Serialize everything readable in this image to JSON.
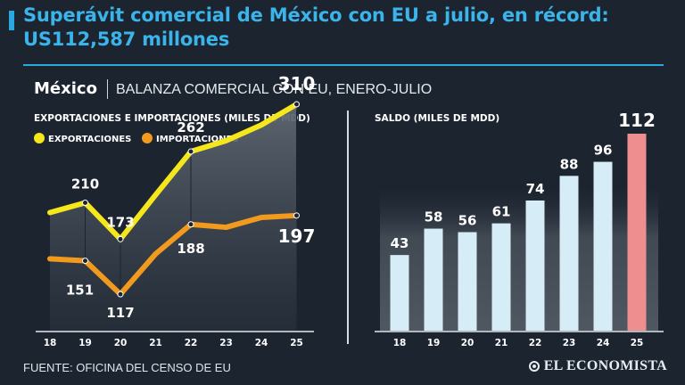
{
  "header": {
    "title": "Superávit comercial de México con EU a julio, en récord: US112,587 millones",
    "country": "México",
    "subtitle": "BALANZA COMERCIAL CON EU, ENERO-JULIO"
  },
  "footer": {
    "source": "FUENTE: OFICINA DEL CENSO DE EU",
    "brand": "EL ECONOMISTA"
  },
  "colors": {
    "accent": "#29a9e0",
    "exports": "#f5e71c",
    "imports": "#f29a1e",
    "bar": "#d6ecf6",
    "bar_highlight": "#ef8e8e"
  },
  "chart_data": [
    {
      "type": "line",
      "title": "EXPORTACIONES E IMPORTACIONES (MILES DE MDD)",
      "x": [
        "18",
        "19",
        "20",
        "21",
        "22",
        "23",
        "24",
        "25"
      ],
      "series": [
        {
          "name": "EXPORTACIONES",
          "values": [
            200,
            210,
            173,
            218,
            262,
            273,
            289,
            310
          ]
        },
        {
          "name": "IMPORTACIONES",
          "values": [
            153,
            151,
            117,
            158,
            188,
            185,
            195,
            197
          ]
        }
      ],
      "labeled": {
        "EXPORTACIONES": [
          {
            "x": "19",
            "value": "210"
          },
          {
            "x": "20",
            "value": "173"
          },
          {
            "x": "22",
            "value": "262"
          },
          {
            "x": "25",
            "value": "310"
          }
        ],
        "IMPORTACIONES": [
          {
            "x": "19",
            "value": "151"
          },
          {
            "x": "20",
            "value": "117"
          },
          {
            "x": "22",
            "value": "188"
          },
          {
            "x": "25",
            "value": "197"
          }
        ]
      },
      "legend": "top-left",
      "ylim": [
        80,
        320
      ]
    },
    {
      "type": "bar",
      "title": "SALDO (MILES DE MDD)",
      "categories": [
        "18",
        "19",
        "20",
        "21",
        "22",
        "23",
        "24",
        "25"
      ],
      "values": [
        43,
        58,
        56,
        61,
        74,
        88,
        96,
        112
      ],
      "labels": [
        "43",
        "58",
        "56",
        "61",
        "74",
        "88",
        "96",
        "112"
      ],
      "highlight": "25",
      "ylim": [
        0,
        125
      ]
    }
  ]
}
